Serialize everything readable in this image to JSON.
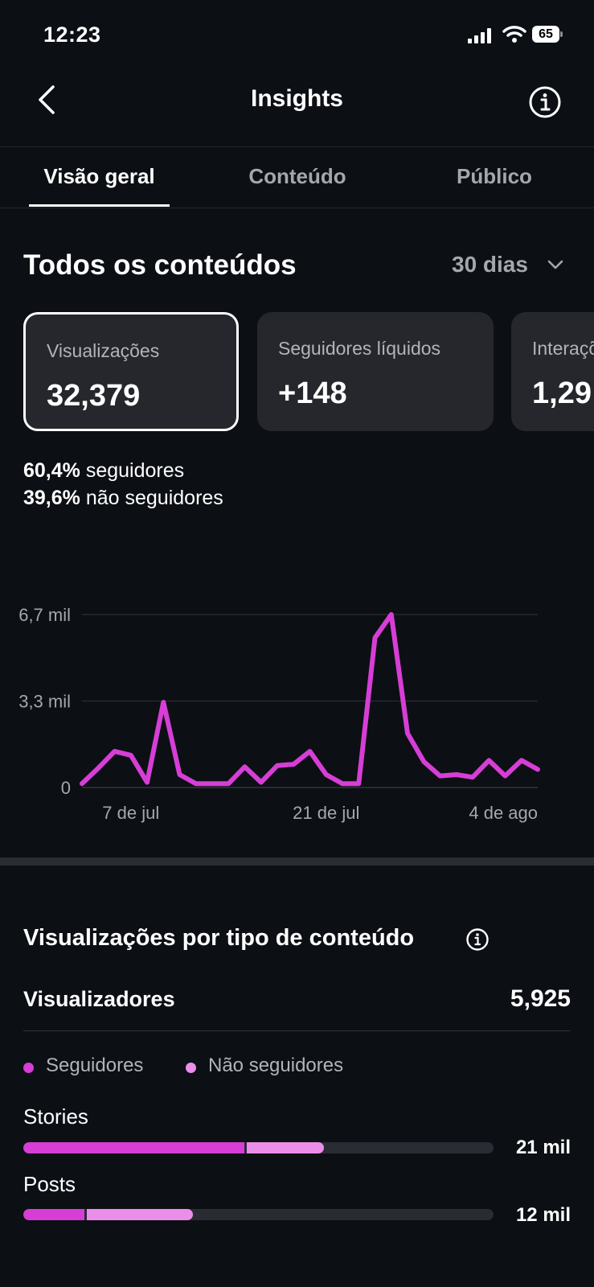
{
  "status_bar": {
    "time": "12:23",
    "battery": "65"
  },
  "header": {
    "title": "Insights"
  },
  "tabs": [
    {
      "label": "Visão geral",
      "active": true
    },
    {
      "label": "Conteúdo",
      "active": false
    },
    {
      "label": "Público",
      "active": false
    }
  ],
  "overview": {
    "title": "Todos os conteúdos",
    "range": "30 dias",
    "cards": [
      {
        "label": "Visualizações",
        "value": "32,379",
        "selected": true
      },
      {
        "label": "Seguidores líquidos",
        "value": "+148",
        "selected": false
      },
      {
        "label": "Interações",
        "value": "1,29",
        "selected": false
      }
    ],
    "followers_split": {
      "followers_pct": "60,4%",
      "followers_label": "seguidores",
      "non_followers_pct": "39,6%",
      "non_followers_label": "não seguidores"
    }
  },
  "chart_data": {
    "type": "line",
    "series": [
      {
        "color": "#d63ed6",
        "values": [
          150,
          750,
          1400,
          1250,
          200,
          3300,
          500,
          150,
          150,
          150,
          800,
          200,
          850,
          900,
          1400,
          500,
          150,
          150,
          5800,
          6700,
          2100,
          1000,
          450,
          500,
          400,
          1050,
          450,
          1050,
          700
        ]
      }
    ],
    "x_ticks": [
      "7 de jul",
      "21 de jul",
      "4 de ago"
    ],
    "x_tick_indices": [
      3,
      15,
      27
    ],
    "y_ticks": [
      {
        "value": 0,
        "label": "0"
      },
      {
        "value": 3350,
        "label": "3,3 mil"
      },
      {
        "value": 6700,
        "label": "6,7 mil"
      }
    ],
    "ylim": [
      0,
      6700
    ],
    "grid": true
  },
  "views_by_type": {
    "title": "Visualizações por tipo de conteúdo",
    "viewers_label": "Visualizadores",
    "viewers_value": "5,925",
    "legend": [
      {
        "label": "Seguidores",
        "color": "#d63ed6"
      },
      {
        "label": "Não seguidores",
        "color": "#eb8eea"
      }
    ],
    "rows": [
      {
        "label": "Stories",
        "value": "21 mil",
        "followers_fraction": 0.47,
        "non_followers_fraction": 0.17
      },
      {
        "label": "Posts",
        "value": "12 mil",
        "followers_fraction": 0.13,
        "non_followers_fraction": 0.23
      }
    ]
  }
}
